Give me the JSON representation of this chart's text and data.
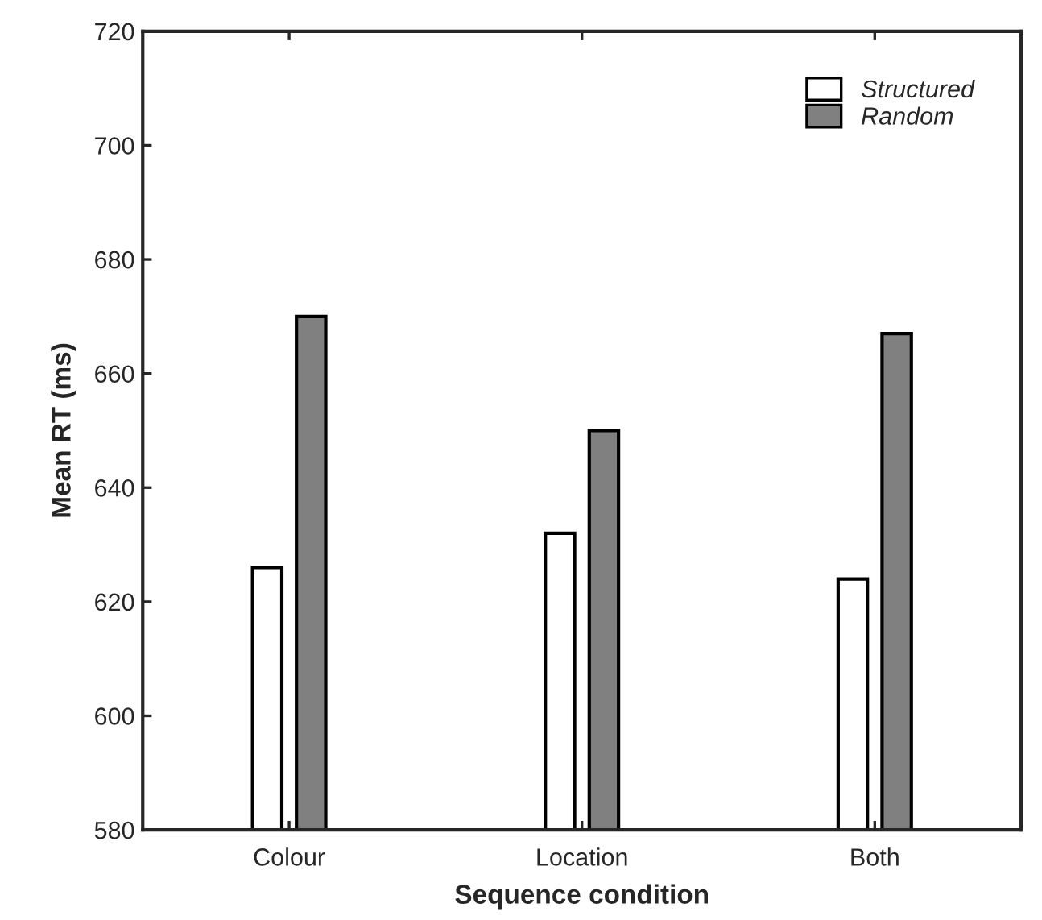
{
  "chart_data": {
    "type": "bar",
    "xlabel": "Sequence condition",
    "ylabel": "Mean RT (ms)",
    "categories": [
      "Colour",
      "Location",
      "Both"
    ],
    "series": [
      {
        "name": "Structured",
        "color": "#ffffff",
        "values": [
          626,
          632,
          624
        ]
      },
      {
        "name": "Random",
        "color": "#808080",
        "values": [
          670,
          650,
          667
        ]
      }
    ],
    "ylim": [
      580,
      720
    ],
    "yticks": [
      580,
      600,
      620,
      640,
      660,
      680,
      700,
      720
    ],
    "grid": false,
    "legend": "top right"
  }
}
